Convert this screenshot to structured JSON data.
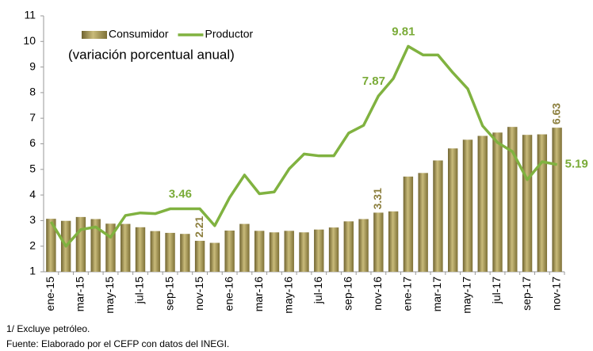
{
  "chart_data": {
    "type": "bar_line",
    "subtitle": "(variación porcentual anual)",
    "categories": [
      "ene-15",
      null,
      "mar-15",
      null,
      "may-15",
      null,
      "jul-15",
      null,
      "sep-15",
      null,
      "nov-15",
      null,
      "ene-16",
      null,
      "mar-16",
      null,
      "may-16",
      null,
      "jul-16",
      null,
      "sep-16",
      null,
      "nov-16",
      null,
      "ene-17",
      null,
      "mar-17",
      null,
      "may-17",
      null,
      "jul-17",
      null,
      "sep-17",
      null,
      "nov-17"
    ],
    "series": [
      {
        "name": "Consumidor",
        "type": "bar",
        "color": "#a99b5c",
        "label_color": "#8c7f3e",
        "values": [
          3.07,
          2.99,
          3.14,
          3.06,
          2.88,
          2.87,
          2.74,
          2.59,
          2.52,
          2.48,
          2.21,
          2.13,
          2.61,
          2.87,
          2.6,
          2.54,
          2.6,
          2.54,
          2.65,
          2.73,
          2.97,
          3.06,
          3.31,
          3.36,
          4.72,
          4.86,
          5.35,
          5.82,
          6.16,
          6.31,
          6.44,
          6.66,
          6.35,
          6.37,
          6.63
        ],
        "data_labels": [
          10,
          22,
          34
        ]
      },
      {
        "name": "Productor",
        "type": "line",
        "color": "#80b240",
        "label_color": "#7aab38",
        "values": [
          2.95,
          2.0,
          2.65,
          2.75,
          2.35,
          3.2,
          3.3,
          3.27,
          3.46,
          3.46,
          3.46,
          2.8,
          3.9,
          4.78,
          4.05,
          4.12,
          5.02,
          5.6,
          5.53,
          5.53,
          6.42,
          6.72,
          7.87,
          8.55,
          9.81,
          9.47,
          9.47,
          8.78,
          8.15,
          6.7,
          6.05,
          5.7,
          4.6,
          5.3,
          5.19
        ],
        "data_labels": [
          9,
          22,
          24,
          34
        ]
      }
    ],
    "ylim": [
      1,
      11
    ],
    "yticks": [
      1,
      2,
      3,
      4,
      5,
      6,
      7,
      8,
      9,
      10,
      11
    ],
    "legend": "top-left",
    "notes": [
      "1/ Excluye petróleo.",
      "Fuente: Elaborado por el CEFP con datos del INEGI."
    ]
  }
}
